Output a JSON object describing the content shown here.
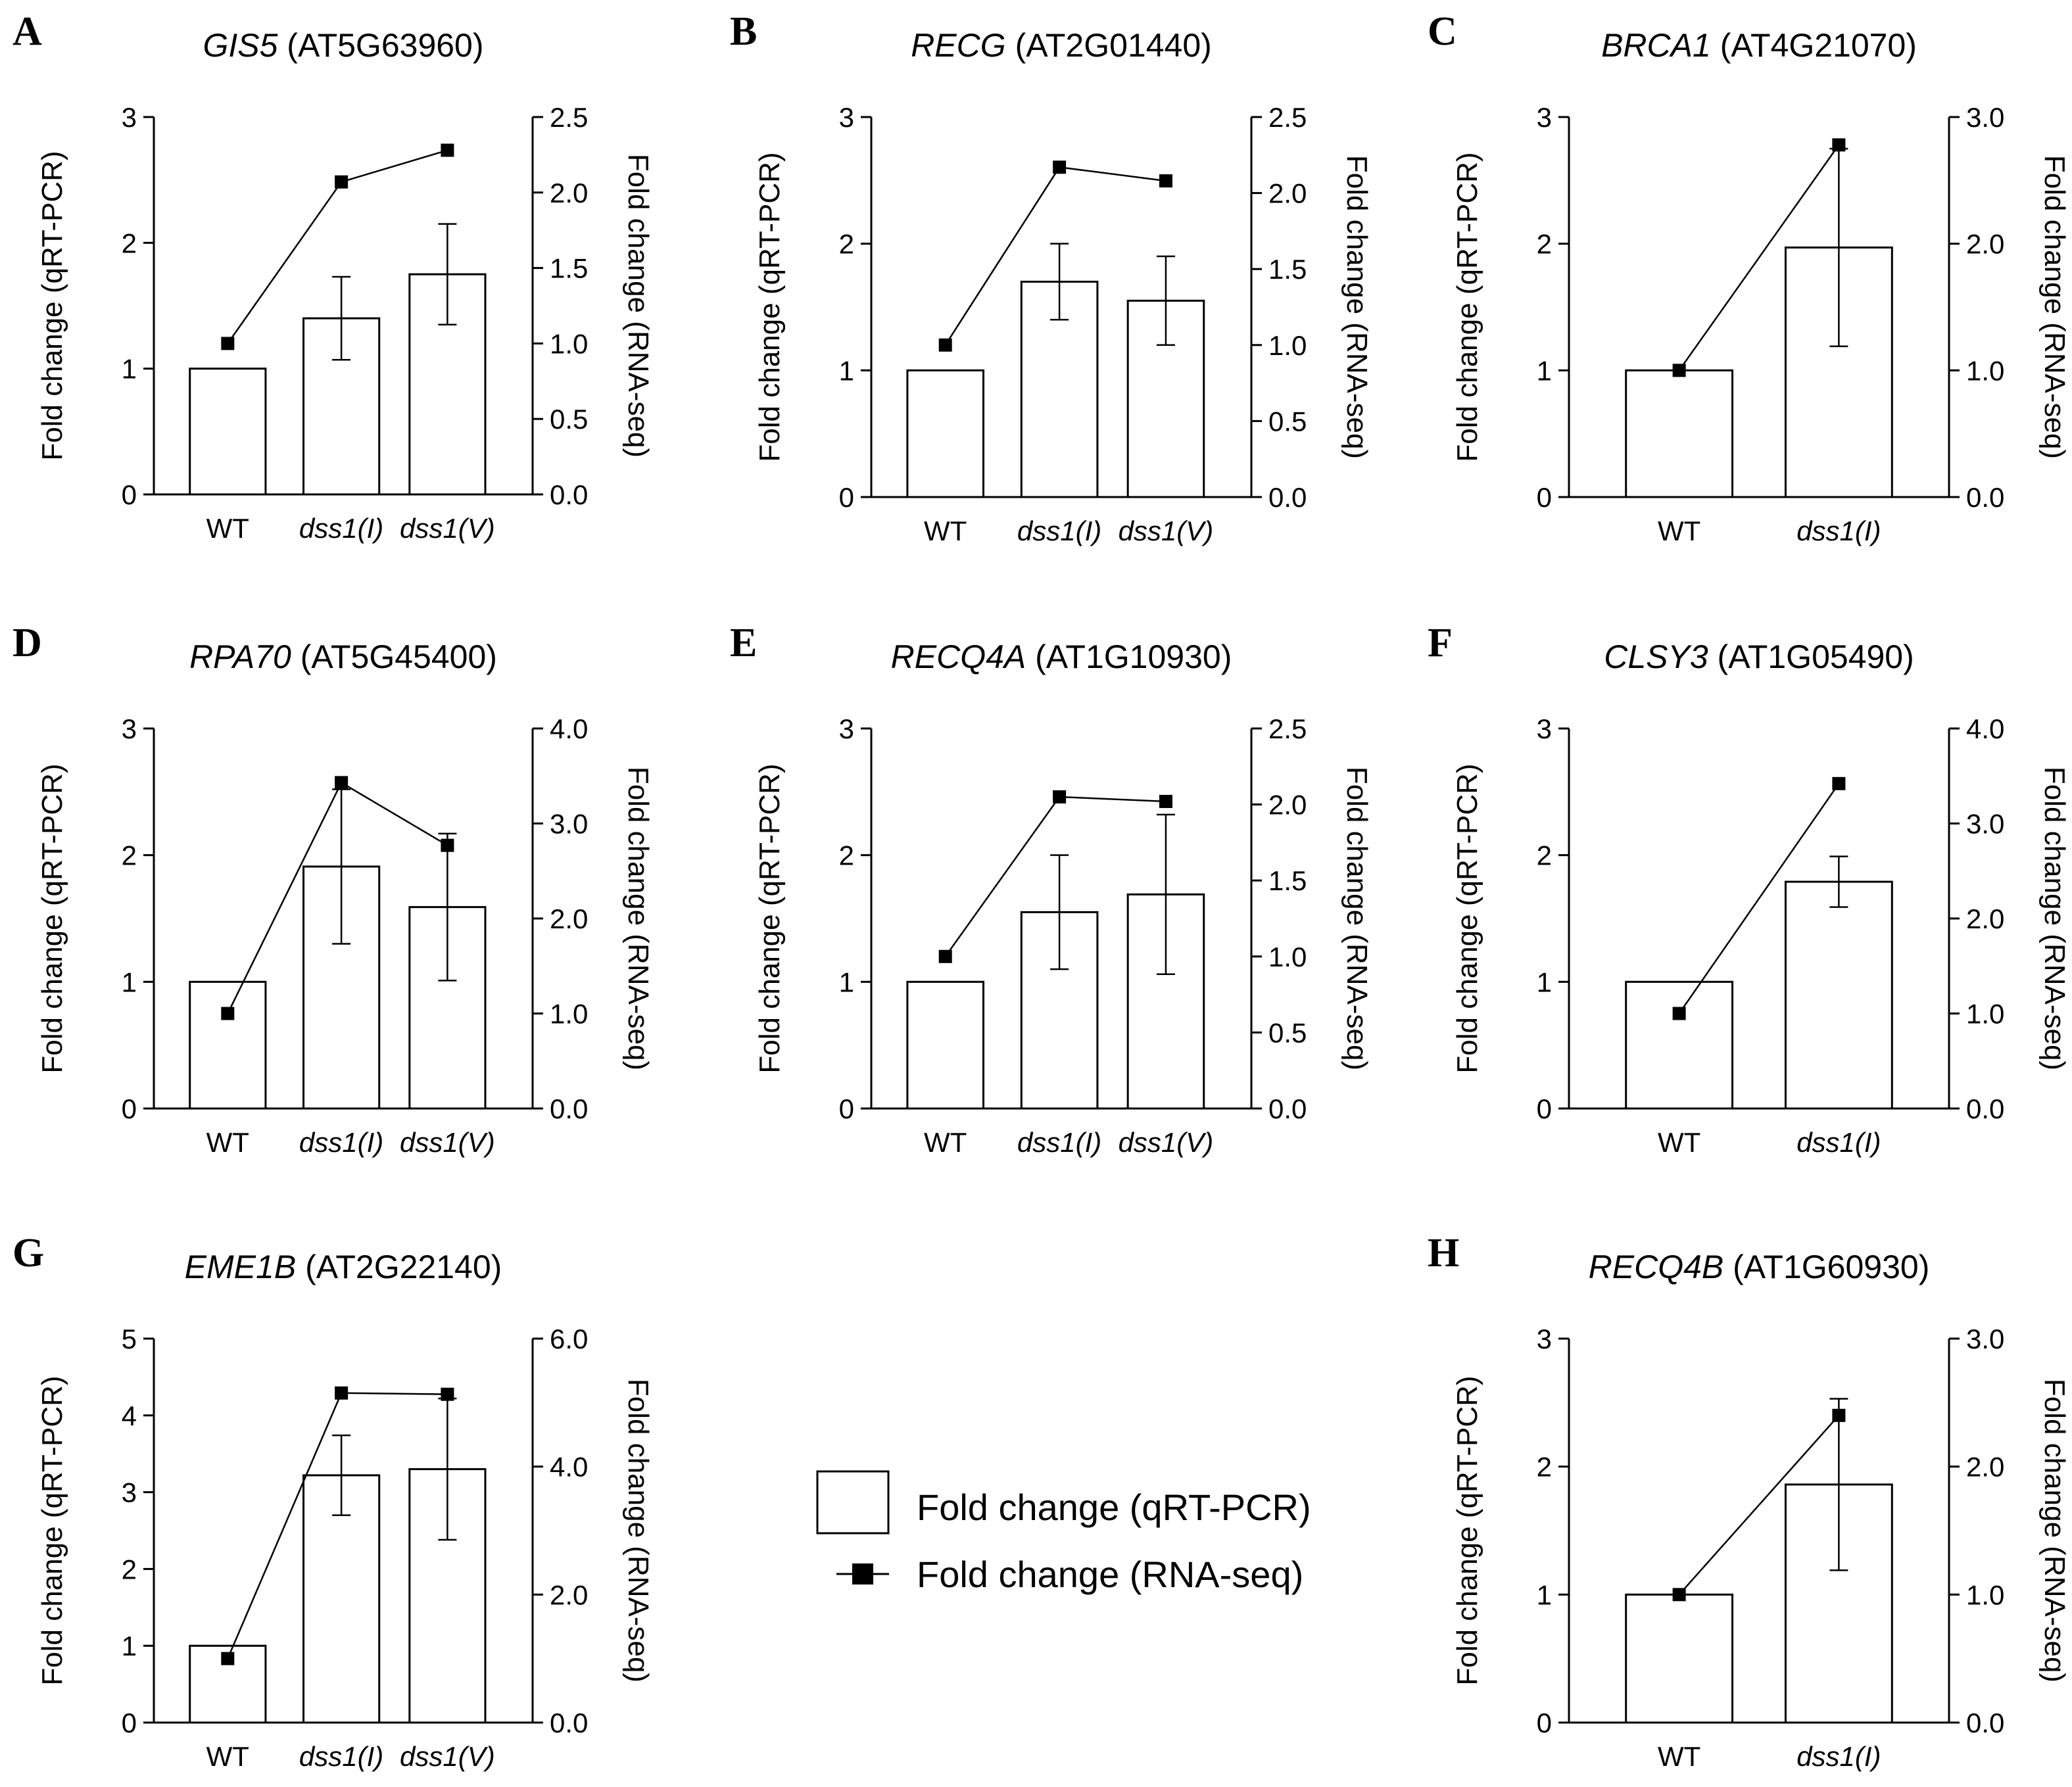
{
  "legend": {
    "bar_label": "Fold change (qRT-PCR)",
    "line_label": "Fold change (RNA-seq)"
  },
  "chart_data": [
    {
      "panel": "A",
      "type": "bar+line",
      "title_gene": "GIS5",
      "title_id": "(AT5G63960)",
      "categories": [
        "WT",
        "dss1(I)",
        "dss1(V)"
      ],
      "ylabel": "Fold change (qRT-PCR)",
      "y2label": "Fold change (RNA-seq)",
      "ylim": [
        0,
        3
      ],
      "yticks": [
        "0",
        "1",
        "2",
        "3"
      ],
      "y2lim": [
        0,
        2.5
      ],
      "y2ticks": [
        "0.0",
        "0.5",
        "1.0",
        "1.5",
        "2.0",
        "2.5"
      ],
      "bars": [
        1.0,
        1.4,
        1.75
      ],
      "bar_err": [
        0,
        0.33,
        0.4
      ],
      "line": [
        1.0,
        2.07,
        2.28
      ]
    },
    {
      "panel": "B",
      "type": "bar+line",
      "title_gene": "RECG",
      "title_id": "(AT2G01440)",
      "categories": [
        "WT",
        "dss1(I)",
        "dss1(V)"
      ],
      "ylabel": "Fold change (qRT-PCR)",
      "y2label": "Fold change (RNA-seq)",
      "ylim": [
        0,
        3
      ],
      "yticks": [
        "0",
        "1",
        "2",
        "3"
      ],
      "y2lim": [
        0,
        2.5
      ],
      "y2ticks": [
        "0.0",
        "0.5",
        "1.0",
        "1.5",
        "2.0",
        "2.5"
      ],
      "bars": [
        1.0,
        1.7,
        1.55
      ],
      "bar_err": [
        0,
        0.3,
        0.35
      ],
      "line": [
        1.0,
        2.17,
        2.08
      ]
    },
    {
      "panel": "C",
      "type": "bar+line",
      "title_gene": "BRCA1",
      "title_id": "(AT4G21070)",
      "categories": [
        "WT",
        "dss1(I)"
      ],
      "ylabel": "Fold change (qRT-PCR)",
      "y2label": "Fold change (RNA-seq)",
      "ylim": [
        0,
        3
      ],
      "yticks": [
        "0",
        "1",
        "2",
        "3"
      ],
      "y2lim": [
        0,
        3.0
      ],
      "y2ticks": [
        "0.0",
        "1.0",
        "2.0",
        "3.0"
      ],
      "bars": [
        1.0,
        1.97
      ],
      "bar_err": [
        0,
        0.78
      ],
      "line": [
        1.0,
        2.78
      ]
    },
    {
      "panel": "D",
      "type": "bar+line",
      "title_gene": "RPA70",
      "title_id": "(AT5G45400)",
      "categories": [
        "WT",
        "dss1(I)",
        "dss1(V)"
      ],
      "ylabel": "Fold change (qRT-PCR)",
      "y2label": "Fold change (RNA-seq)",
      "ylim": [
        0,
        3
      ],
      "yticks": [
        "0",
        "1",
        "2",
        "3"
      ],
      "y2lim": [
        0,
        4.0
      ],
      "y2ticks": [
        "0.0",
        "1.0",
        "2.0",
        "3.0",
        "4.0"
      ],
      "bars": [
        1.0,
        1.91,
        1.59
      ],
      "bar_err": [
        0,
        0.61,
        0.58
      ],
      "line": [
        1.0,
        3.43,
        2.77
      ]
    },
    {
      "panel": "E",
      "type": "bar+line",
      "title_gene": "RECQ4A",
      "title_id": "(AT1G10930)",
      "categories": [
        "WT",
        "dss1(I)",
        "dss1(V)"
      ],
      "ylabel": "Fold change (qRT-PCR)",
      "y2label": "Fold change (RNA-seq)",
      "ylim": [
        0,
        3
      ],
      "yticks": [
        "0",
        "1",
        "2",
        "3"
      ],
      "y2lim": [
        0,
        2.5
      ],
      "y2ticks": [
        "0.0",
        "0.5",
        "1.0",
        "1.5",
        "2.0",
        "2.5"
      ],
      "bars": [
        1.0,
        1.55,
        1.69
      ],
      "bar_err": [
        0,
        0.45,
        0.63
      ],
      "line": [
        1.0,
        2.05,
        2.02
      ]
    },
    {
      "panel": "F",
      "type": "bar+line",
      "title_gene": "CLSY3",
      "title_id": "(AT1G05490)",
      "categories": [
        "WT",
        "dss1(I)"
      ],
      "ylabel": "Fold change (qRT-PCR)",
      "y2label": "Fold change (RNA-seq)",
      "ylim": [
        0,
        3
      ],
      "yticks": [
        "0",
        "1",
        "2",
        "3"
      ],
      "y2lim": [
        0,
        4.0
      ],
      "y2ticks": [
        "0.0",
        "1.0",
        "2.0",
        "3.0",
        "4.0"
      ],
      "bars": [
        1.0,
        1.79
      ],
      "bar_err": [
        0,
        0.2
      ],
      "line": [
        1.0,
        3.42
      ]
    },
    {
      "panel": "G",
      "type": "bar+line",
      "title_gene": "EME1B",
      "title_id": "(AT2G22140)",
      "categories": [
        "WT",
        "dss1(I)",
        "dss1(V)"
      ],
      "ylabel": "Fold change (qRT-PCR)",
      "y2label": "Fold change (RNA-seq)",
      "ylim": [
        0,
        5
      ],
      "yticks": [
        "0",
        "1",
        "2",
        "3",
        "4",
        "5"
      ],
      "y2lim": [
        0,
        6.0
      ],
      "y2ticks": [
        "0.0",
        "2.0",
        "4.0",
        "6.0"
      ],
      "bars": [
        1.0,
        3.22,
        3.3
      ],
      "bar_err": [
        0,
        0.52,
        0.92
      ],
      "line": [
        1.0,
        5.15,
        5.13
      ]
    },
    {
      "panel": "H",
      "type": "bar+line",
      "title_gene": "RECQ4B",
      "title_id": "(AT1G60930)",
      "categories": [
        "WT",
        "dss1(I)"
      ],
      "ylabel": "Fold change (qRT-PCR)",
      "y2label": "Fold change (RNA-seq)",
      "ylim": [
        0,
        3
      ],
      "yticks": [
        "0",
        "1",
        "2",
        "3"
      ],
      "y2lim": [
        0,
        3.0
      ],
      "y2ticks": [
        "0.0",
        "1.0",
        "2.0",
        "3.0"
      ],
      "bars": [
        1.0,
        1.86
      ],
      "bar_err": [
        0,
        0.67
      ],
      "line": [
        1.0,
        2.4
      ]
    }
  ]
}
